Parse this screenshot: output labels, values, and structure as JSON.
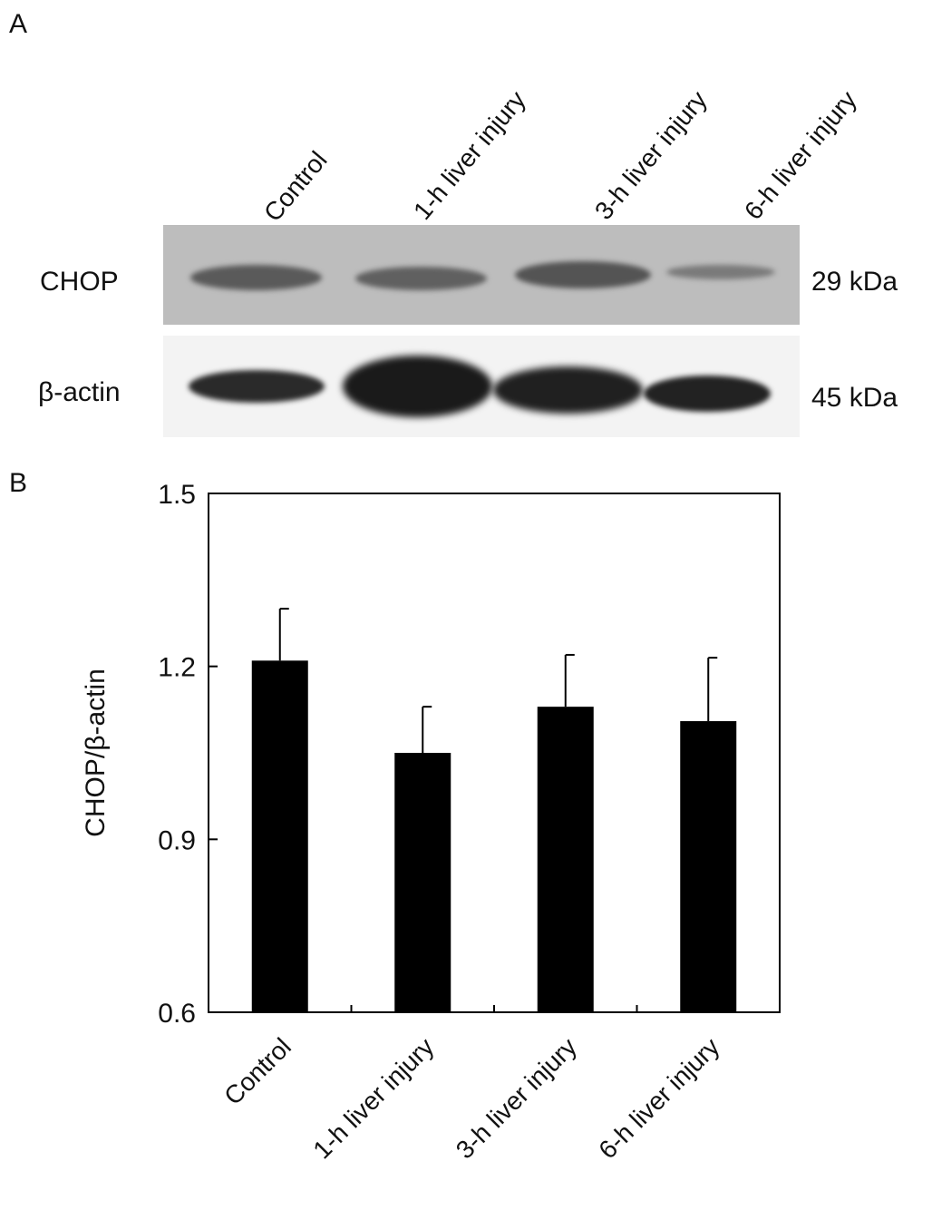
{
  "panel_a": {
    "label": "A",
    "lanes": [
      "Control",
      "1-h liver injury",
      "3-h liver injury",
      "6-h liver injury"
    ],
    "blots": [
      {
        "protein": "CHOP",
        "size": "29 kDa",
        "band_intensity": [
          0.7,
          0.65,
          0.75,
          0.45
        ]
      },
      {
        "protein": "β-actin",
        "size": "45 kDa",
        "band_intensity": [
          0.85,
          1.0,
          0.92,
          0.9
        ]
      }
    ]
  },
  "chart_data": {
    "panel_label": "B",
    "type": "bar",
    "categories": [
      "Control",
      "1-h liver injury",
      "3-h liver injury",
      "6-h liver injury"
    ],
    "values": [
      1.21,
      1.05,
      1.13,
      1.105
    ],
    "error_upper": [
      0.09,
      0.08,
      0.09,
      0.11
    ],
    "title": "",
    "xlabel": "",
    "ylabel": "CHOP/β-actin",
    "ylim": [
      0.6,
      1.5
    ],
    "yticks": [
      "0.6",
      "0.9",
      "1.2",
      "1.5"
    ],
    "grid": false,
    "legend": false,
    "bar_color": "#000000"
  }
}
